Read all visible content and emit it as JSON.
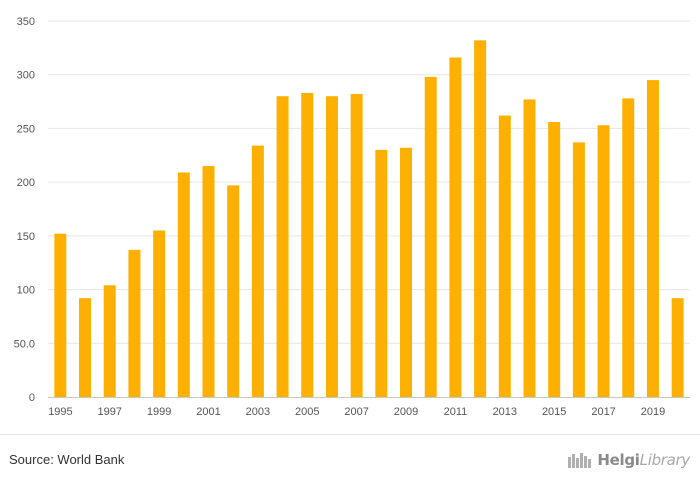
{
  "chart_data": {
    "type": "bar",
    "title": "",
    "xlabel": "",
    "ylabel": "",
    "categories": [
      "1995",
      "1996",
      "1997",
      "1998",
      "1999",
      "2000",
      "2001",
      "2002",
      "2003",
      "2004",
      "2005",
      "2006",
      "2007",
      "2008",
      "2009",
      "2010",
      "2011",
      "2012",
      "2013",
      "2014",
      "2015",
      "2016",
      "2017",
      "2018",
      "2019",
      "2020"
    ],
    "x_tick_labels": [
      "1995",
      "1997",
      "1999",
      "2001",
      "2003",
      "2005",
      "2007",
      "2009",
      "2011",
      "2013",
      "2015",
      "2017",
      "2019"
    ],
    "values": [
      152,
      92,
      104,
      137,
      155,
      209,
      215,
      197,
      234,
      280,
      283,
      280,
      282,
      230,
      232,
      298,
      316,
      332,
      262,
      277,
      256,
      237,
      253,
      278,
      295,
      92
    ],
    "ylim": [
      0,
      350
    ],
    "y_ticks": [
      0,
      50,
      100,
      150,
      200,
      250,
      300,
      350
    ],
    "y_tick_labels": [
      "0",
      "50.0",
      "100",
      "150",
      "200",
      "250",
      "300",
      "350"
    ],
    "grid": true,
    "legend": "none",
    "bar_color": "#FDB000"
  },
  "footer": {
    "source": "Source: World Bank",
    "brand_name_bold": "Helgi",
    "brand_name_rest": "Library"
  }
}
